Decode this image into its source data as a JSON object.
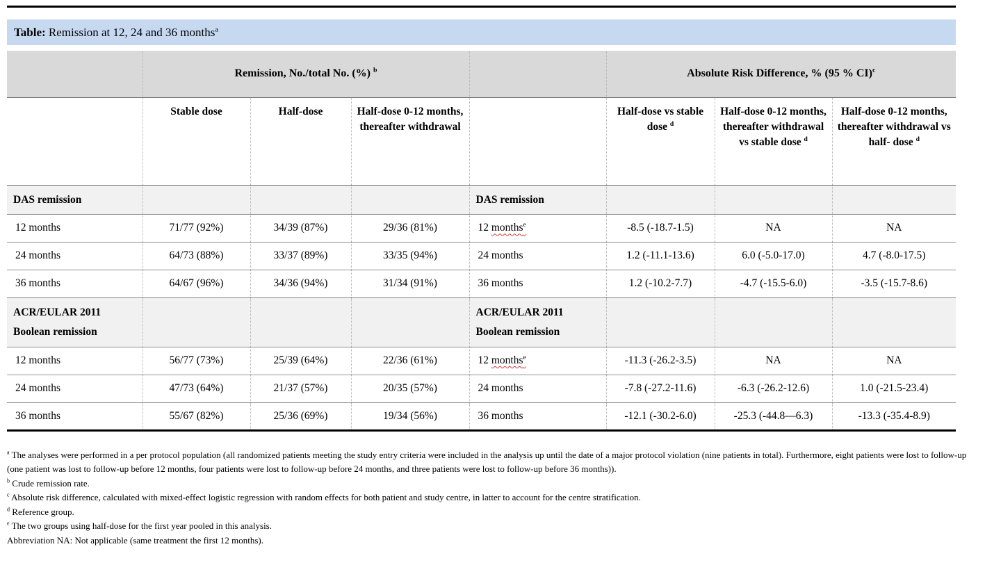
{
  "title": {
    "label": "Table:",
    "text": " Remission at 12, 24 and 36 months",
    "sup": "a"
  },
  "table": {
    "group_headers": [
      {
        "text": "Remission, No./total No. (%) ",
        "sup": "b"
      },
      {
        "text": "Absolute Risk Difference, % (95 % CI)",
        "sup": "c"
      }
    ],
    "columns": [
      {
        "text": ""
      },
      {
        "text": "Stable dose"
      },
      {
        "text": "Half-dose"
      },
      {
        "text": "Half-dose 0-12 months, thereafter withdrawal"
      },
      {
        "text": ""
      },
      {
        "text": "Half-dose vs stable dose ",
        "sup": "d"
      },
      {
        "text": "Half-dose 0-12 months, thereafter withdrawal vs stable dose ",
        "sup": "d"
      },
      {
        "text": "Half-dose 0-12 months, thereafter withdrawal vs half- dose ",
        "sup": "d"
      }
    ],
    "rows": [
      {
        "type": "section",
        "left": [
          "DAS remission"
        ],
        "right": [
          "DAS remission"
        ]
      },
      {
        "type": "data",
        "cells": [
          "12 months",
          "71/77 (92%)",
          "34/39 (87%)",
          "29/36 (81%)",
          {
            "parts": [
              {
                "t": "12 "
              },
              {
                "t": "months",
                "sup": "e",
                "squiggle": true
              }
            ]
          },
          "-8.5 (-18.7-1.5)",
          "NA",
          "NA"
        ]
      },
      {
        "type": "data",
        "cells": [
          "24 months",
          "64/73 (88%)",
          "33/37 (89%)",
          "33/35 (94%)",
          "24 months",
          "1.2 (-11.1-13.6)",
          "6.0 (-5.0-17.0)",
          "4.7 (-8.0-17.5)"
        ]
      },
      {
        "type": "data",
        "cells": [
          "36 months",
          "64/67 (96%)",
          "34/36 (94%)",
          "31/34 (91%)",
          "36 months",
          "1.2 (-10.2-7.7)",
          "-4.7 (-15.5-6.0)",
          "-3.5 (-15.7-8.6)"
        ]
      },
      {
        "type": "section",
        "left": [
          "ACR/EULAR 2011",
          "Boolean remission"
        ],
        "right": [
          "ACR/EULAR 2011",
          "Boolean remission"
        ]
      },
      {
        "type": "data",
        "cells": [
          "12 months",
          "56/77 (73%)",
          "25/39 (64%)",
          "22/36 (61%)",
          {
            "parts": [
              {
                "t": "12 "
              },
              {
                "t": "months",
                "sup": "e",
                "squiggle": true
              }
            ]
          },
          "-11.3 (-26.2-3.5)",
          "NA",
          "NA"
        ]
      },
      {
        "type": "data",
        "cells": [
          "24 months",
          "47/73 (64%)",
          "21/37 (57%)",
          "20/35 (57%)",
          "24 months",
          "-7.8 (-27.2-11.6)",
          "-6.3 (-26.2-12.6)",
          "1.0 (-21.5-23.4)"
        ]
      },
      {
        "type": "data",
        "cells": [
          "36 months",
          "55/67 (82%)",
          "25/36 (69%)",
          "19/34 (56%)",
          "36 months",
          "-12.1 (-30.2-6.0)",
          "-25.3 (-44.8—6.3)",
          "-13.3 (-35.4-8.9)"
        ]
      }
    ]
  },
  "footnotes": [
    {
      "sup": "a",
      "text": "The analyses were performed in a per protocol population (all randomized patients meeting the study entry criteria were included in the analysis up until the date of a major protocol violation (nine patients in total). Furthermore, eight patients were lost to follow-up (one patient was lost to follow-up before 12 months, four patients were lost to follow-up before 24 months, and three patients were lost to follow-up before 36 months))."
    },
    {
      "sup": "b",
      "text": "Crude remission rate."
    },
    {
      "sup": "c",
      "text": "Absolute risk difference, calculated with mixed-effect logistic regression with random effects for both patient and study centre, in latter to account for the centre stratification."
    },
    {
      "sup": "d",
      "text": "Reference group."
    },
    {
      "sup": "e",
      "text": "The two groups using half-dose for the first year pooled in this analysis."
    },
    {
      "text": "Abbreviation NA: Not applicable (same treatment the first 12 months)."
    }
  ],
  "colors": {
    "title_bar": "#c6d9f1",
    "group_header_band": "#d9d9d9",
    "section_row": "#f1f1f1",
    "spellcheck_squiggle": "#d83a3a",
    "rule": "#000000"
  }
}
